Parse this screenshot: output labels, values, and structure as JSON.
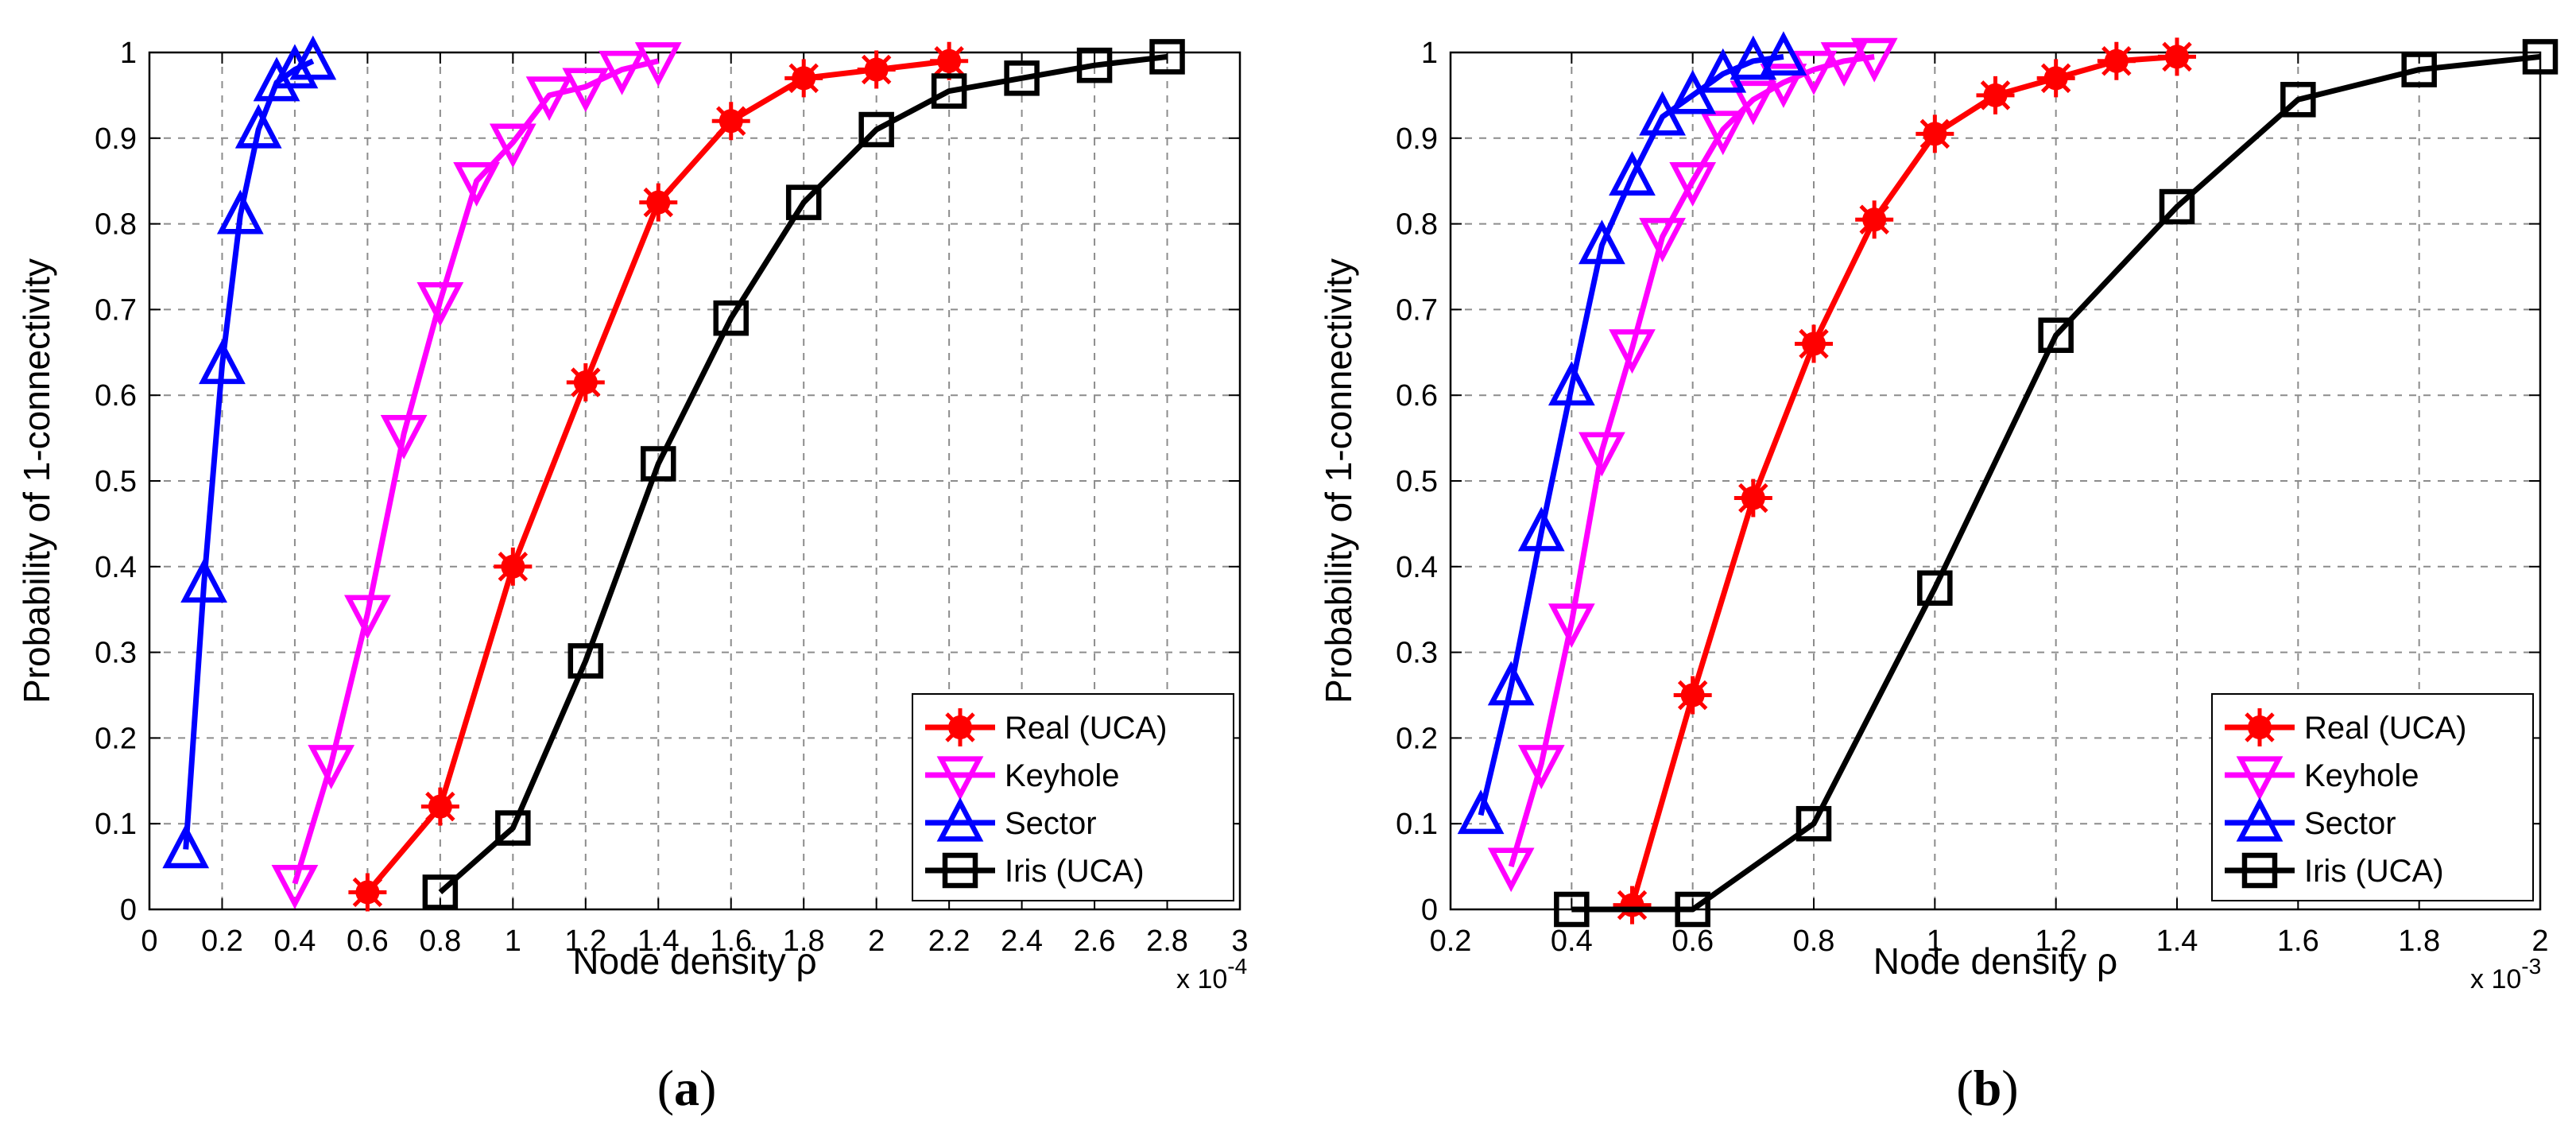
{
  "chart_data": [
    {
      "type": "line",
      "panel_label": "(a)",
      "panel_label_parts": {
        "open": "(",
        "letter": "a",
        "close": ")"
      },
      "xlabel": "Node density ρ",
      "ylabel": "Probability of 1-connectivity",
      "x_exponent": {
        "base": "x 10",
        "power": "-4"
      },
      "xlim": [
        0,
        3
      ],
      "ylim": [
        0,
        1
      ],
      "x_ticks": [
        "0",
        "0.2",
        "0.4",
        "0.6",
        "0.8",
        "1",
        "1.2",
        "1.4",
        "1.6",
        "1.8",
        "2",
        "2.2",
        "2.4",
        "2.6",
        "2.8",
        "3"
      ],
      "y_ticks": [
        "0",
        "0.1",
        "0.2",
        "0.3",
        "0.4",
        "0.5",
        "0.6",
        "0.7",
        "0.8",
        "0.9",
        "1"
      ],
      "grid": true,
      "legend_position": "bottom-right",
      "series": [
        {
          "name": "Real (UCA)",
          "color": "#ff0000",
          "marker": "asterisk",
          "x": [
            0.6,
            0.8,
            1.0,
            1.2,
            1.4,
            1.6,
            1.8,
            2.0,
            2.2
          ],
          "y": [
            0.02,
            0.12,
            0.4,
            0.615,
            0.825,
            0.92,
            0.97,
            0.98,
            0.99
          ]
        },
        {
          "name": "Keyhole",
          "color": "#ff00ff",
          "marker": "triangle-down",
          "x": [
            0.4,
            0.5,
            0.6,
            0.7,
            0.8,
            0.9,
            1.0,
            1.1,
            1.2,
            1.3,
            1.4
          ],
          "y": [
            0.03,
            0.17,
            0.345,
            0.555,
            0.71,
            0.85,
            0.895,
            0.95,
            0.96,
            0.98,
            0.99
          ]
        },
        {
          "name": "Sector",
          "color": "#0000ff",
          "marker": "triangle-up",
          "x": [
            0.1,
            0.15,
            0.2,
            0.25,
            0.3,
            0.35,
            0.4,
            0.45
          ],
          "y": [
            0.07,
            0.38,
            0.635,
            0.81,
            0.91,
            0.965,
            0.98,
            0.99
          ]
        },
        {
          "name": "Iris (UCA)",
          "color": "#000000",
          "marker": "square",
          "x": [
            0.8,
            1.0,
            1.2,
            1.4,
            1.6,
            1.8,
            2.0,
            2.2,
            2.4,
            2.6,
            2.8
          ],
          "y": [
            0.02,
            0.095,
            0.29,
            0.52,
            0.69,
            0.825,
            0.91,
            0.955,
            0.97,
            0.985,
            0.995
          ]
        }
      ]
    },
    {
      "type": "line",
      "panel_label": "(b)",
      "panel_label_parts": {
        "open": "(",
        "letter": "b",
        "close": ")"
      },
      "xlabel": "Node density ρ",
      "ylabel": "Probability of 1-connectivity",
      "x_exponent": {
        "base": "x 10",
        "power": "-3"
      },
      "xlim": [
        0.2,
        2
      ],
      "ylim": [
        0,
        1
      ],
      "x_ticks": [
        "0.2",
        "0.4",
        "0.6",
        "0.8",
        "1",
        "1.2",
        "1.4",
        "1.6",
        "1.8",
        "2"
      ],
      "y_ticks": [
        "0",
        "0.1",
        "0.2",
        "0.3",
        "0.4",
        "0.5",
        "0.6",
        "0.7",
        "0.8",
        "0.9",
        "1"
      ],
      "grid": true,
      "legend_position": "bottom-right",
      "series": [
        {
          "name": "Real (UCA)",
          "color": "#ff0000",
          "marker": "asterisk",
          "x": [
            0.5,
            0.6,
            0.7,
            0.8,
            0.9,
            1.0,
            1.1,
            1.2,
            1.3,
            1.4
          ],
          "y": [
            0.005,
            0.25,
            0.48,
            0.66,
            0.805,
            0.905,
            0.95,
            0.97,
            0.99,
            0.995
          ]
        },
        {
          "name": "Keyhole",
          "color": "#ff00ff",
          "marker": "triangle-down",
          "x": [
            0.3,
            0.35,
            0.4,
            0.45,
            0.5,
            0.55,
            0.6,
            0.65,
            0.7,
            0.75,
            0.8,
            0.85,
            0.9
          ],
          "y": [
            0.05,
            0.17,
            0.335,
            0.535,
            0.655,
            0.785,
            0.85,
            0.91,
            0.945,
            0.965,
            0.98,
            0.99,
            0.995
          ]
        },
        {
          "name": "Sector",
          "color": "#0000ff",
          "marker": "triangle-up",
          "x": [
            0.25,
            0.3,
            0.35,
            0.4,
            0.45,
            0.5,
            0.55,
            0.6,
            0.65,
            0.7,
            0.75
          ],
          "y": [
            0.11,
            0.26,
            0.44,
            0.61,
            0.775,
            0.855,
            0.925,
            0.95,
            0.975,
            0.99,
            0.995
          ]
        },
        {
          "name": "Iris (UCA)",
          "color": "#000000",
          "marker": "square",
          "x": [
            0.4,
            0.6,
            0.8,
            1.0,
            1.2,
            1.4,
            1.6,
            1.8,
            2.0
          ],
          "y": [
            0.0,
            0.0,
            0.1,
            0.375,
            0.67,
            0.82,
            0.945,
            0.98,
            0.995
          ]
        }
      ]
    }
  ]
}
